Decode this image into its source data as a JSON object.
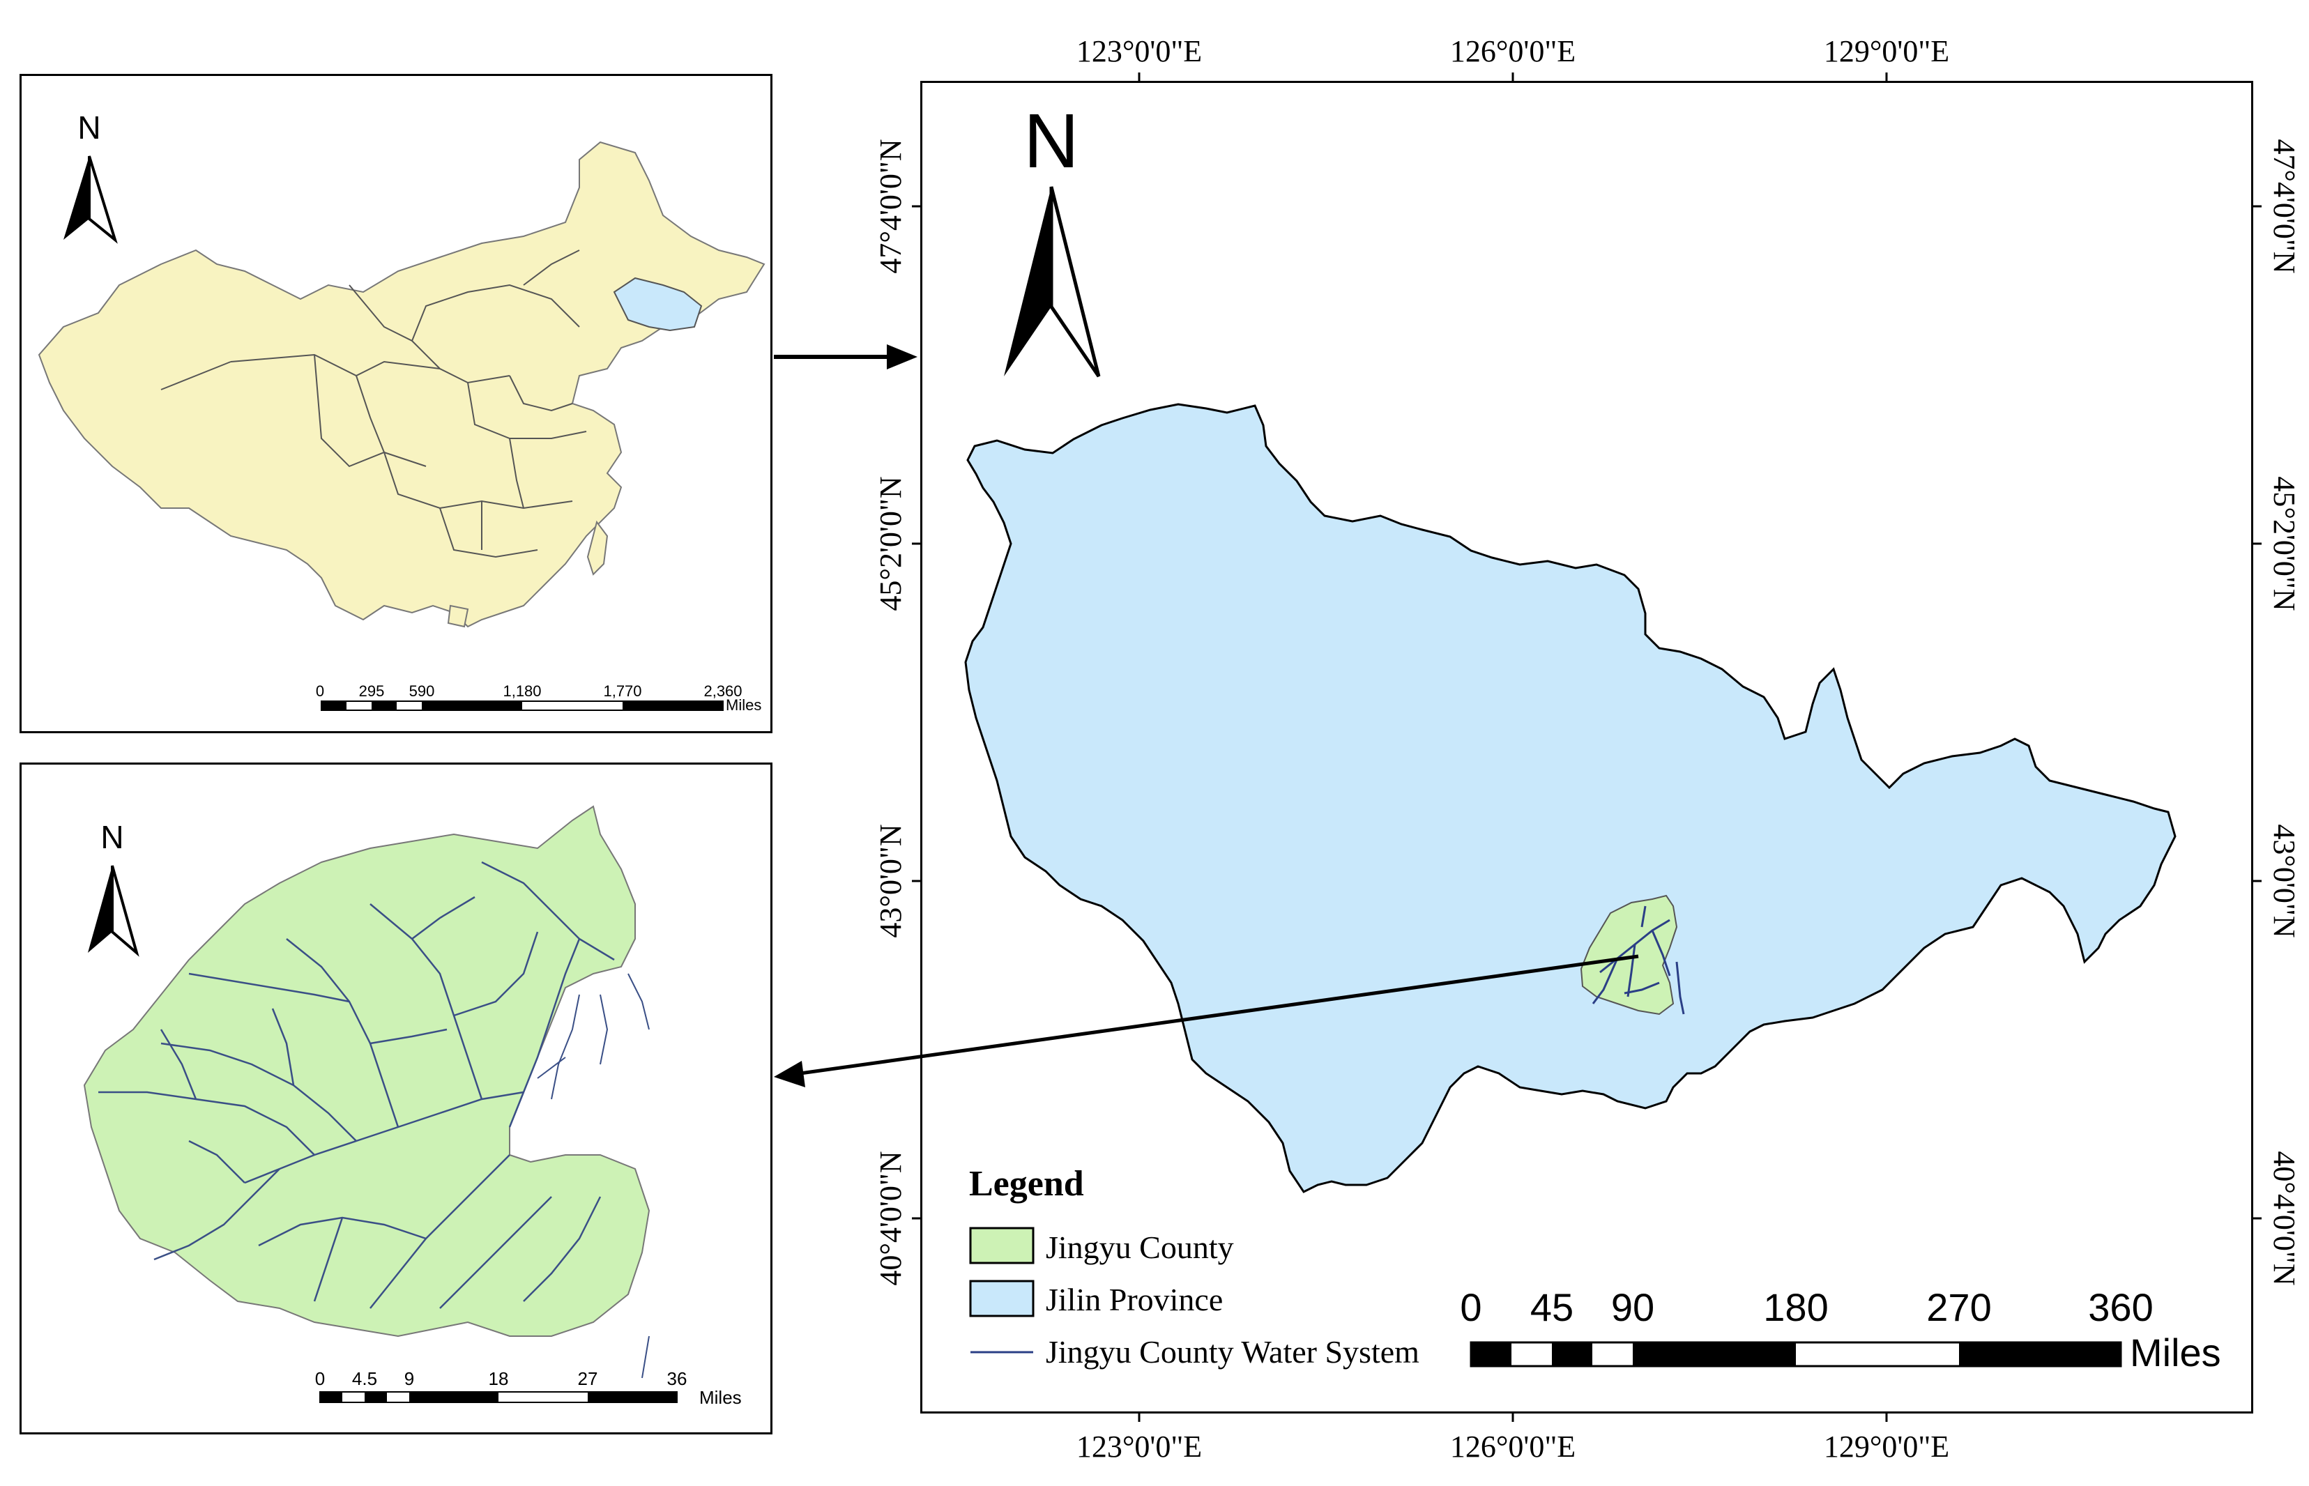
{
  "china_inset": {
    "north_label": "N",
    "scale_labels": [
      "0",
      "295",
      "590",
      "1,180",
      "1,770",
      "2,360"
    ],
    "scale_unit": "Miles",
    "fill_color": "#f8f3c1",
    "highlight_color": "#c9e8fb"
  },
  "county_inset": {
    "north_label": "N",
    "scale_labels": [
      "0",
      "4.5",
      "9",
      "18",
      "27",
      "36"
    ],
    "scale_unit": "Miles",
    "fill_color": "#cdf2b5",
    "river_color": "#3a4f86"
  },
  "main_map": {
    "north_label": "N",
    "lon_labels": [
      "123°0'0\"E",
      "126°0'0\"E",
      "129°0'0\"E"
    ],
    "lat_labels": [
      "47°4'0'0\"N",
      "45°2'0'0\"N",
      "43°0'0\"N",
      "40°4'0'0\"N"
    ],
    "province_color": "#c9e8fb",
    "county_color": "#cdf2b5",
    "legend": {
      "title": "Legend",
      "items": [
        {
          "label": "Jingyu County",
          "color": "#cdf2b5"
        },
        {
          "label": "Jilin Province",
          "color": "#c9e8fb"
        },
        {
          "label": "Jingyu County Water System",
          "color": "#2b3f86"
        }
      ]
    },
    "scale_labels": [
      "0",
      "45",
      "90",
      "180",
      "270",
      "360"
    ],
    "scale_unit": "Miles"
  }
}
